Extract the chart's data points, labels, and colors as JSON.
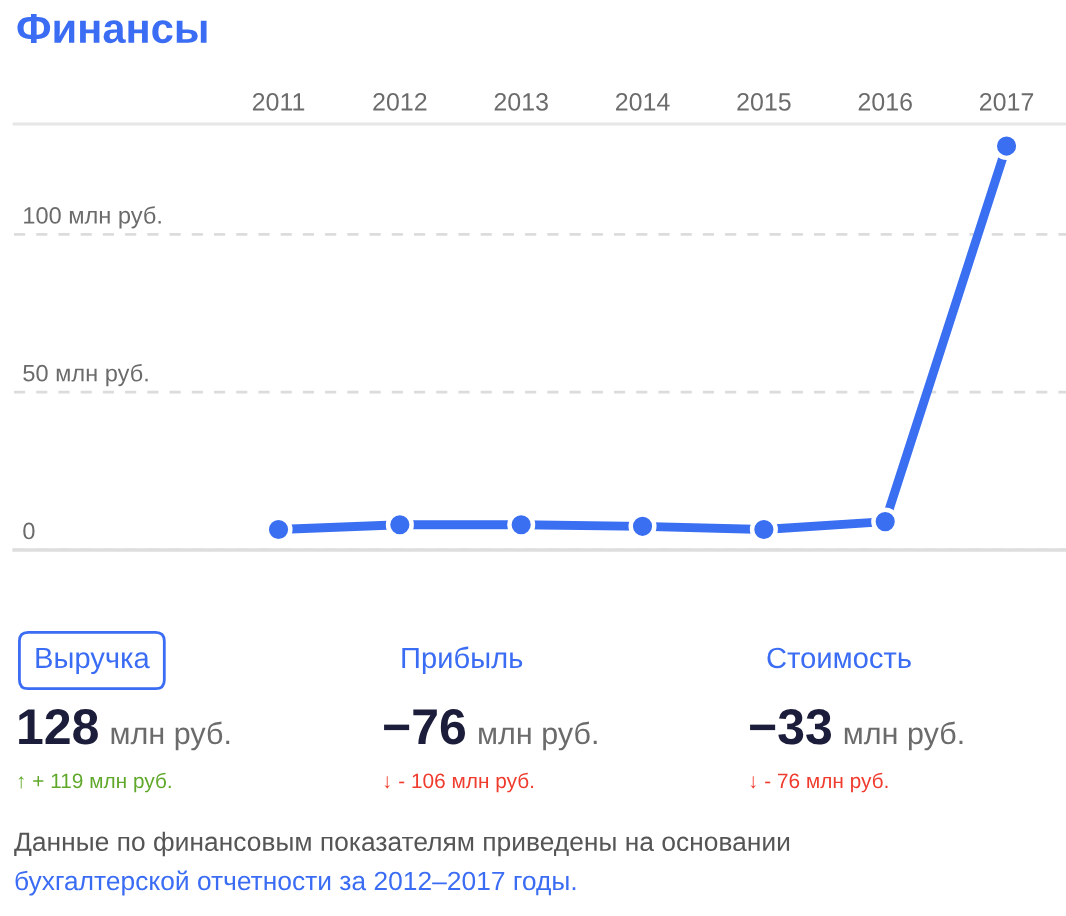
{
  "chart_data": [
    {
      "type": "line",
      "title": "Финансы",
      "categories": [
        "2011",
        "2012",
        "2013",
        "2014",
        "2015",
        "2016",
        "2017"
      ],
      "values": [
        6.5,
        8,
        8,
        7.5,
        6.5,
        9,
        128
      ],
      "color": "#3a6ff2",
      "ylim": [
        0,
        135
      ],
      "yticks": [
        0,
        {
          "value": 50,
          "label": "50 млн руб."
        },
        {
          "value": 100,
          "label": "100 млн руб."
        }
      ],
      "grid": "y",
      "marker": "circle",
      "line_style": "solid",
      "annotations": [
        "Данные по финансовым показателям приведены на основании",
        "бухгалтерской отчетности за 2012–2017 годы."
      ]
    },
    {
      "type": "other",
      "annotations": [
        "Выручка",
        "128",
        "млн руб.",
        "↑ + 119 млн руб.",
        "Прибыль",
        "−76",
        "млн руб.",
        "↓ - 106 млн руб.",
        "Стоимость",
        "−33",
        "млн руб.",
        "↓ - 76 млн руб."
      ]
    }
  ]
}
